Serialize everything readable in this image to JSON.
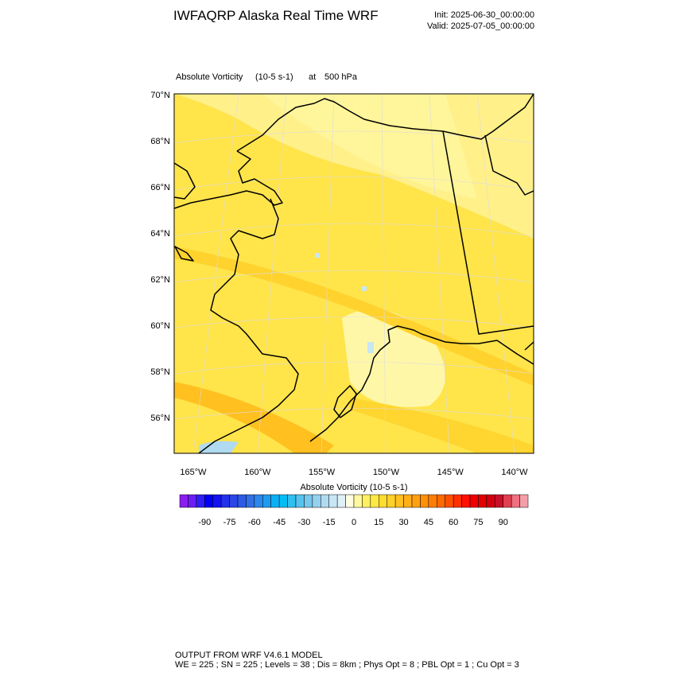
{
  "header": {
    "title": "IWFAQRP Alaska Real Time WRF",
    "init": "Init: 2025-06-30_00:00:00",
    "valid": "Valid: 2025-07-05_00:00:00"
  },
  "map": {
    "field": "Absolute Vorticity",
    "units": "(10-5 s-1)",
    "level_prefix": "at",
    "level": "500 hPa",
    "lat_labels": [
      "70°N",
      "68°N",
      "66°N",
      "64°N",
      "62°N",
      "60°N",
      "58°N",
      "56°N"
    ],
    "lon_labels": [
      "165°W",
      "160°W",
      "155°W",
      "150°W",
      "145°W",
      "140°W"
    ],
    "colorbar": {
      "title": "Absolute Vorticity  (10-5 s-1)",
      "range": [
        -105,
        105
      ],
      "ticks": [
        -90,
        -75,
        -60,
        -45,
        -30,
        -15,
        0,
        15,
        30,
        45,
        60,
        75,
        90
      ],
      "colors": [
        "#8a1ef0",
        "#6a1ef5",
        "#2e1ef5",
        "#0000f5",
        "#1414f0",
        "#2332e8",
        "#2a46e6",
        "#2e5ae6",
        "#3270e6",
        "#2d86eb",
        "#1e9bf0",
        "#0aaff5",
        "#00bef5",
        "#30c0f0",
        "#55c3ee",
        "#75c8ee",
        "#95d0ee",
        "#b0daf0",
        "#c8e6f4",
        "#e0f0f8",
        "#fffce0",
        "#fff8a0",
        "#fff060",
        "#ffe845",
        "#ffdc30",
        "#ffd028",
        "#ffc020",
        "#ffb018",
        "#ffa010",
        "#ff900a",
        "#ff7d05",
        "#ff6a00",
        "#ff5000",
        "#ff3000",
        "#ff1000",
        "#f00000",
        "#e00000",
        "#d00010",
        "#c81028",
        "#e04050",
        "#f07080",
        "#f4a0a8"
      ]
    }
  },
  "footer": {
    "line1": "OUTPUT FROM WRF V4.6.1 MODEL",
    "line2": "WE = 225 ; SN = 225 ; Levels = 38 ; Dis = 8km ; Phys Opt = 8 ; PBL Opt = 1 ; Cu Opt = 3"
  }
}
